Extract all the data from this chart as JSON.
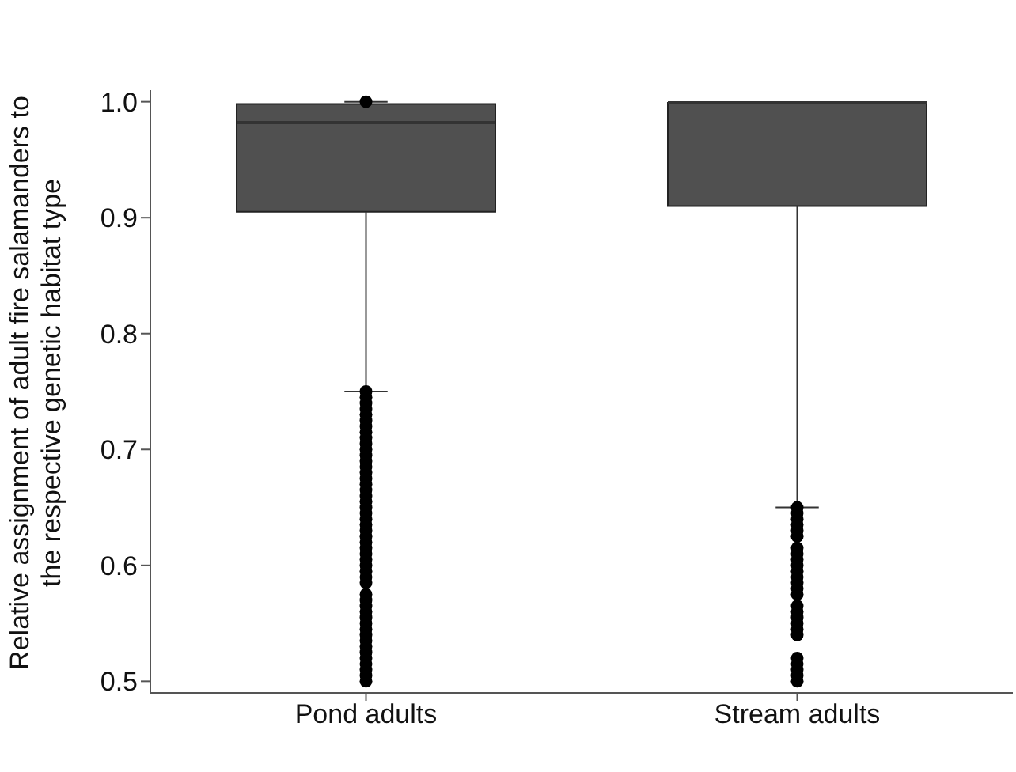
{
  "chart_data": {
    "type": "box",
    "ylabel": "Relative assignment of adult fire salamanders to the respective genetic habitat type",
    "categories": [
      "Pond adults",
      "Stream adults"
    ],
    "color": "#505050",
    "boxes": [
      {
        "low": 0.75,
        "q1": 0.905,
        "median": 0.982,
        "q3": 0.998,
        "high": 1.0,
        "outliers": [
          1.0,
          0.75,
          0.745,
          0.74,
          0.735,
          0.73,
          0.725,
          0.72,
          0.715,
          0.71,
          0.705,
          0.7,
          0.695,
          0.69,
          0.685,
          0.68,
          0.675,
          0.67,
          0.665,
          0.66,
          0.655,
          0.65,
          0.645,
          0.64,
          0.635,
          0.63,
          0.625,
          0.62,
          0.615,
          0.61,
          0.605,
          0.6,
          0.595,
          0.59,
          0.585,
          0.575,
          0.57,
          0.565,
          0.56,
          0.555,
          0.55,
          0.545,
          0.54,
          0.535,
          0.53,
          0.525,
          0.52,
          0.515,
          0.51,
          0.505,
          0.5
        ]
      },
      {
        "low": 0.65,
        "q1": 0.91,
        "median": 0.999,
        "q3": 0.999,
        "high": 0.999,
        "outliers": [
          0.65,
          0.645,
          0.64,
          0.635,
          0.63,
          0.625,
          0.615,
          0.61,
          0.605,
          0.6,
          0.595,
          0.59,
          0.585,
          0.58,
          0.575,
          0.565,
          0.56,
          0.555,
          0.55,
          0.545,
          0.54,
          0.52,
          0.515,
          0.51,
          0.505,
          0.5
        ]
      }
    ],
    "ylim": [
      0.49,
      1.01
    ],
    "yticks": [
      0.5,
      0.6,
      0.7,
      0.8,
      0.9,
      {
        "value": 1,
        "label": "1.0"
      }
    ]
  }
}
